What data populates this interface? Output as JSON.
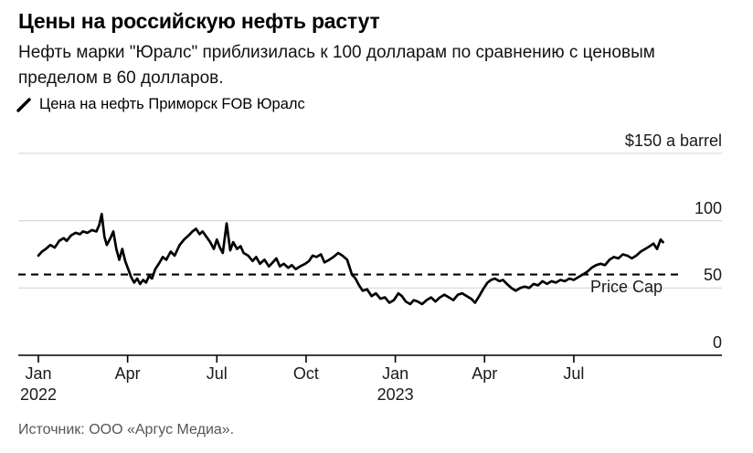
{
  "header": {
    "title": "Цены на российскую нефть растут",
    "subtitle": "Нефть марки \"Юралс\" приблизилась к 100 долларам по сравнению с ценовым пределом в 60 долларов."
  },
  "legend": {
    "series_label": "Цена на нефть Приморск FOB Юралс"
  },
  "source": "Источник: ООО «Аргус Медиа».",
  "chart_data": {
    "type": "line",
    "title": "Цены на российскую нефть растут",
    "subtitle": "Нефть марки \"Юралс\" приблизилась к 100 долларам по сравнению с ценовым пределом в 60 долларов.",
    "unit_label": "$150 a barrel",
    "ylabel": "",
    "xlabel": "",
    "ylim": [
      0,
      150
    ],
    "grid": "horizontal",
    "legend_position": "top-left",
    "y_axis": {
      "ticks": [
        {
          "value": 150,
          "label": "$150 a barrel"
        },
        {
          "value": 100,
          "label": "100"
        },
        {
          "value": 50,
          "label": "50"
        },
        {
          "value": 0,
          "label": "0"
        }
      ]
    },
    "x_axis": {
      "unit": "months_since_jan_2022",
      "range": [
        0,
        21.6
      ],
      "ticks": [
        {
          "t": 0,
          "label": "Jan",
          "year": "2022"
        },
        {
          "t": 3,
          "label": "Apr",
          "year": ""
        },
        {
          "t": 6,
          "label": "Jul",
          "year": ""
        },
        {
          "t": 9,
          "label": "Oct",
          "year": ""
        },
        {
          "t": 12,
          "label": "Jan",
          "year": "2023"
        },
        {
          "t": 15,
          "label": "Apr",
          "year": ""
        },
        {
          "t": 18,
          "label": "Jul",
          "year": ""
        }
      ]
    },
    "price_cap": {
      "value": 60,
      "label": "Price Cap"
    },
    "colors": {
      "line": "#000000",
      "grid": "#d8d8d8",
      "cap_line": "#000000",
      "axis": "#000000"
    },
    "series": [
      {
        "name": "Цена на нефть Приморск FOB Юралс",
        "unit": "USD per barrel",
        "points": [
          [
            0.0,
            74
          ],
          [
            0.12,
            77
          ],
          [
            0.25,
            79
          ],
          [
            0.4,
            82
          ],
          [
            0.55,
            80
          ],
          [
            0.7,
            85
          ],
          [
            0.85,
            87
          ],
          [
            0.95,
            85
          ],
          [
            1.1,
            89
          ],
          [
            1.25,
            91
          ],
          [
            1.4,
            90
          ],
          [
            1.5,
            92
          ],
          [
            1.65,
            91
          ],
          [
            1.8,
            93
          ],
          [
            1.95,
            92
          ],
          [
            2.05,
            97
          ],
          [
            2.13,
            105
          ],
          [
            2.22,
            88
          ],
          [
            2.3,
            82
          ],
          [
            2.42,
            87
          ],
          [
            2.52,
            92
          ],
          [
            2.62,
            79
          ],
          [
            2.72,
            71
          ],
          [
            2.82,
            79
          ],
          [
            2.92,
            70
          ],
          [
            3.02,
            64
          ],
          [
            3.12,
            58
          ],
          [
            3.22,
            54
          ],
          [
            3.32,
            57
          ],
          [
            3.42,
            53
          ],
          [
            3.52,
            56
          ],
          [
            3.62,
            54
          ],
          [
            3.72,
            59
          ],
          [
            3.82,
            57
          ],
          [
            3.93,
            64
          ],
          [
            4.05,
            68
          ],
          [
            4.18,
            73
          ],
          [
            4.3,
            71
          ],
          [
            4.45,
            77
          ],
          [
            4.58,
            74
          ],
          [
            4.75,
            82
          ],
          [
            4.9,
            86
          ],
          [
            5.05,
            89
          ],
          [
            5.18,
            92
          ],
          [
            5.3,
            94
          ],
          [
            5.42,
            90
          ],
          [
            5.52,
            92
          ],
          [
            5.65,
            88
          ],
          [
            5.78,
            84
          ],
          [
            5.9,
            79
          ],
          [
            6.0,
            86
          ],
          [
            6.1,
            80
          ],
          [
            6.2,
            76
          ],
          [
            6.33,
            98
          ],
          [
            6.45,
            78
          ],
          [
            6.55,
            84
          ],
          [
            6.68,
            79
          ],
          [
            6.8,
            81
          ],
          [
            6.9,
            76
          ],
          [
            7.05,
            74
          ],
          [
            7.2,
            70
          ],
          [
            7.32,
            73
          ],
          [
            7.45,
            68
          ],
          [
            7.6,
            71
          ],
          [
            7.75,
            66
          ],
          [
            7.88,
            69
          ],
          [
            8.0,
            72
          ],
          [
            8.12,
            66
          ],
          [
            8.25,
            68
          ],
          [
            8.4,
            65
          ],
          [
            8.52,
            67
          ],
          [
            8.65,
            64
          ],
          [
            8.8,
            66
          ],
          [
            8.97,
            68
          ],
          [
            9.1,
            70
          ],
          [
            9.22,
            74
          ],
          [
            9.35,
            73
          ],
          [
            9.5,
            75
          ],
          [
            9.62,
            69
          ],
          [
            9.78,
            71
          ],
          [
            9.92,
            73
          ],
          [
            10.08,
            76
          ],
          [
            10.22,
            74
          ],
          [
            10.38,
            71
          ],
          [
            10.54,
            60
          ],
          [
            10.66,
            57
          ],
          [
            10.78,
            52
          ],
          [
            10.9,
            48
          ],
          [
            11.05,
            49
          ],
          [
            11.2,
            44
          ],
          [
            11.35,
            46
          ],
          [
            11.5,
            42
          ],
          [
            11.65,
            43
          ],
          [
            11.8,
            39
          ],
          [
            11.95,
            41
          ],
          [
            12.1,
            46
          ],
          [
            12.22,
            44
          ],
          [
            12.35,
            40
          ],
          [
            12.5,
            38
          ],
          [
            12.62,
            41
          ],
          [
            12.75,
            40
          ],
          [
            12.9,
            38
          ],
          [
            13.05,
            41
          ],
          [
            13.2,
            43
          ],
          [
            13.35,
            40
          ],
          [
            13.5,
            43
          ],
          [
            13.65,
            45
          ],
          [
            13.8,
            43
          ],
          [
            13.95,
            41
          ],
          [
            14.1,
            45
          ],
          [
            14.25,
            46
          ],
          [
            14.4,
            44
          ],
          [
            14.55,
            42
          ],
          [
            14.68,
            39
          ],
          [
            14.82,
            44
          ],
          [
            14.95,
            49
          ],
          [
            15.1,
            54
          ],
          [
            15.22,
            56
          ],
          [
            15.35,
            57
          ],
          [
            15.5,
            55
          ],
          [
            15.62,
            56
          ],
          [
            15.75,
            53
          ],
          [
            15.9,
            50
          ],
          [
            16.05,
            48
          ],
          [
            16.2,
            50
          ],
          [
            16.35,
            51
          ],
          [
            16.5,
            50
          ],
          [
            16.65,
            53
          ],
          [
            16.8,
            52
          ],
          [
            16.95,
            55
          ],
          [
            17.1,
            53
          ],
          [
            17.25,
            55
          ],
          [
            17.4,
            54
          ],
          [
            17.55,
            56
          ],
          [
            17.7,
            55
          ],
          [
            17.85,
            57
          ],
          [
            18.0,
            56
          ],
          [
            18.15,
            58
          ],
          [
            18.3,
            60
          ],
          [
            18.45,
            62
          ],
          [
            18.6,
            65
          ],
          [
            18.75,
            67
          ],
          [
            18.9,
            68
          ],
          [
            19.05,
            67
          ],
          [
            19.2,
            71
          ],
          [
            19.35,
            73
          ],
          [
            19.5,
            72
          ],
          [
            19.65,
            75
          ],
          [
            19.8,
            74
          ],
          [
            19.95,
            72
          ],
          [
            20.1,
            74
          ],
          [
            20.25,
            77
          ],
          [
            20.4,
            79
          ],
          [
            20.55,
            81
          ],
          [
            20.68,
            83
          ],
          [
            20.8,
            79
          ],
          [
            20.92,
            86
          ],
          [
            21.0,
            84
          ]
        ]
      }
    ]
  }
}
